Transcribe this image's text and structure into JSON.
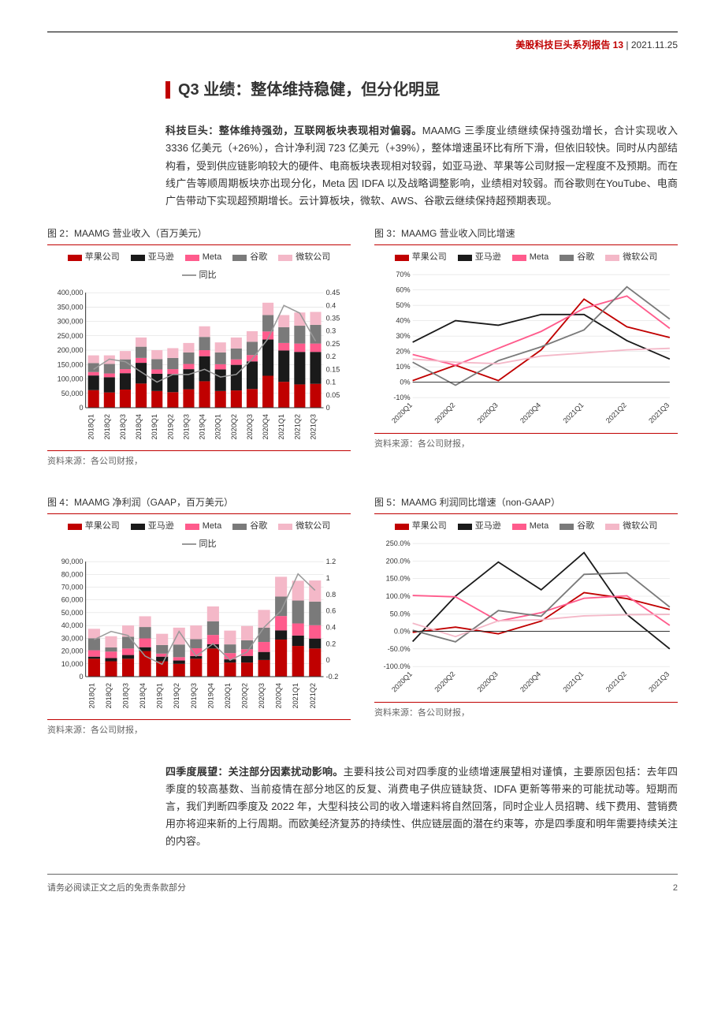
{
  "header": {
    "series_title": "美股科技巨头系列报告 13",
    "date": "2021.11.25"
  },
  "section": {
    "title": "Q3 业绩：整体维持稳健，但分化明显"
  },
  "para1": {
    "lead": "科技巨头：整体维持强劲，互联网板块表现相对偏弱。",
    "body": "MAAMG 三季度业绩继续保持强劲增长，合计实现收入 3336 亿美元（+26%），合计净利润 723 亿美元（+39%），整体增速虽环比有所下滑，但依旧较快。同时从内部结构看，受到供应链影响较大的硬件、电商板块表现相对较弱，如亚马逊、苹果等公司财报一定程度不及预期。而在线广告等顺周期板块亦出现分化，Meta 因 IDFA 以及战略调整影响，业绩相对较弱。而谷歌则在YouTube、电商广告带动下实现超预期增长。云计算板块，微软、AWS、谷歌云继续保持超预期表现。"
  },
  "para2": {
    "lead": "四季度展望：关注部分因素扰动影响。",
    "body": "主要科技公司对四季度的业绩增速展望相对谨慎，主要原因包括：去年四季度的较高基数、当前疫情在部分地区的反复、消费电子供应链缺货、IDFA 更新等带来的可能扰动等。短期而言，我们判断四季度及 2022 年，大型科技公司的收入增速料将自然回落，同时企业人员招聘、线下费用、营销费用亦将迎来新的上行周期。而欧美经济复苏的持续性、供应链层面的潜在约束等，亦是四季度和明年需要持续关注的内容。"
  },
  "companies": {
    "apple": "苹果公司",
    "amazon": "亚马逊",
    "meta": "Meta",
    "google": "谷歌",
    "microsoft": "微软公司",
    "yoy": "同比"
  },
  "colors": {
    "apple": "#c00000",
    "amazon": "#1a1a1a",
    "meta": "#ff5b8c",
    "google": "#7a7a7a",
    "microsoft": "#f4b8c8",
    "yoy_line": "#9a9a9a",
    "grid": "#d9d9d9",
    "axis": "#333333",
    "bg": "#ffffff"
  },
  "chart2": {
    "title": "图 2：MAAMG 营业收入（百万美元）",
    "type": "stacked-bar-with-line",
    "categories": [
      "2018Q1",
      "2018Q2",
      "2018Q3",
      "2018Q4",
      "2019Q1",
      "2019Q2",
      "2019Q3",
      "2019Q4",
      "2020Q1",
      "2020Q2",
      "2020Q3",
      "2020Q4",
      "2021Q1",
      "2021Q2",
      "2021Q3"
    ],
    "series": {
      "apple": [
        61000,
        53000,
        63000,
        84000,
        58000,
        54000,
        64000,
        92000,
        58000,
        60000,
        65000,
        111000,
        90000,
        81000,
        83000
      ],
      "amazon": [
        51000,
        53000,
        57000,
        72000,
        60000,
        63000,
        70000,
        87000,
        75000,
        89000,
        96000,
        126000,
        109000,
        113000,
        111000
      ],
      "meta": [
        12000,
        13000,
        14000,
        17000,
        15000,
        17000,
        18000,
        21000,
        18000,
        19000,
        22000,
        28000,
        26000,
        29000,
        29000
      ],
      "google": [
        31000,
        33000,
        34000,
        39000,
        36000,
        39000,
        40000,
        46000,
        41000,
        38000,
        46000,
        57000,
        55000,
        62000,
        65000
      ],
      "microsoft": [
        27000,
        30000,
        29000,
        32000,
        31000,
        34000,
        33000,
        37000,
        35000,
        38000,
        37000,
        43000,
        42000,
        46000,
        45000
      ]
    },
    "yoy_line": [
      0.15,
      0.19,
      0.18,
      0.14,
      0.1,
      0.13,
      0.13,
      0.15,
      0.12,
      0.13,
      0.19,
      0.27,
      0.4,
      0.37,
      0.26
    ],
    "ylim_left": [
      0,
      400000
    ],
    "ytick_left_step": 50000,
    "ylim_right": [
      0,
      0.45
    ],
    "ytick_right_step": 0.05,
    "source": "资料来源：各公司财报，"
  },
  "chart3": {
    "title": "图 3：MAAMG 营业收入同比增速",
    "type": "line",
    "categories": [
      "2020Q1",
      "2020Q2",
      "2020Q3",
      "2020Q4",
      "2021Q1",
      "2021Q2",
      "2021Q3"
    ],
    "series": {
      "apple": [
        0.01,
        0.11,
        0.01,
        0.21,
        0.54,
        0.36,
        0.29
      ],
      "amazon": [
        0.26,
        0.4,
        0.37,
        0.44,
        0.44,
        0.27,
        0.15
      ],
      "meta": [
        0.18,
        0.11,
        0.22,
        0.33,
        0.48,
        0.56,
        0.35
      ],
      "google": [
        0.13,
        -0.02,
        0.14,
        0.23,
        0.34,
        0.62,
        0.41
      ],
      "microsoft": [
        0.15,
        0.13,
        0.12,
        0.17,
        0.19,
        0.21,
        0.22
      ]
    },
    "ylim": [
      -0.1,
      0.7
    ],
    "ytick_step": 0.1,
    "source": "资料来源：各公司财报，"
  },
  "chart4": {
    "title": "图 4：MAAMG 净利润（GAAP，百万美元）",
    "type": "stacked-bar-with-line",
    "categories": [
      "2018Q1",
      "2018Q2",
      "2018Q3",
      "2018Q4",
      "2019Q1",
      "2019Q2",
      "2019Q3",
      "2019Q4",
      "2020Q1",
      "2020Q2",
      "2020Q3",
      "2020Q4",
      "2021Q1",
      "2021Q2"
    ],
    "series": {
      "apple": [
        14000,
        12000,
        14000,
        20000,
        12000,
        10000,
        14000,
        22000,
        11000,
        11000,
        13000,
        29000,
        24000,
        22000
      ],
      "amazon": [
        1600,
        2500,
        2900,
        3000,
        3600,
        2600,
        2100,
        3300,
        2500,
        5200,
        6300,
        7200,
        8100,
        7800
      ],
      "meta": [
        5000,
        5100,
        5100,
        6900,
        2400,
        2600,
        6100,
        7300,
        4900,
        5200,
        7800,
        11200,
        9500,
        10400
      ],
      "google": [
        9400,
        3200,
        9200,
        8900,
        6700,
        9900,
        7100,
        10700,
        6800,
        7000,
        11200,
        15200,
        17900,
        18500
      ],
      "microsoft": [
        7400,
        8800,
        8800,
        8400,
        8800,
        13200,
        10700,
        11600,
        10800,
        11200,
        13900,
        15500,
        15500,
        16500
      ]
    },
    "yoy_line": [
      0.25,
      0.35,
      0.3,
      0.05,
      -0.05,
      0.35,
      0.05,
      0.2,
      0.0,
      0.1,
      0.4,
      0.6,
      1.05,
      0.85
    ],
    "ylim_left": [
      0,
      90000
    ],
    "ytick_left_step": 10000,
    "ylim_right": [
      -0.2,
      1.2
    ],
    "ytick_right_step": 0.2,
    "source": "资料来源：各公司财报，"
  },
  "chart5": {
    "title": "图 5：MAAMG 利润同比增速（non-GAAP）",
    "type": "line",
    "categories": [
      "2020Q1",
      "2020Q2",
      "2020Q3",
      "2020Q4",
      "2021Q1",
      "2021Q2",
      "2021Q3"
    ],
    "series": {
      "apple": [
        -0.03,
        0.12,
        -0.07,
        0.29,
        1.1,
        0.93,
        0.62
      ],
      "amazon": [
        -0.29,
        1.0,
        1.97,
        1.18,
        2.24,
        0.48,
        -0.5
      ],
      "meta": [
        1.02,
        0.98,
        0.29,
        0.53,
        0.94,
        1.01,
        0.17
      ],
      "google": [
        0.03,
        -0.3,
        0.59,
        0.43,
        1.62,
        1.66,
        0.69
      ],
      "microsoft": [
        0.23,
        -0.15,
        0.3,
        0.33,
        0.44,
        0.47,
        0.48
      ]
    },
    "ylim": [
      -1.0,
      2.5
    ],
    "ytick_step": 0.5,
    "source": "资料来源：各公司财报，"
  },
  "footer": {
    "disclaimer": "请务必阅读正文之后的免责条款部分",
    "page": "2"
  }
}
